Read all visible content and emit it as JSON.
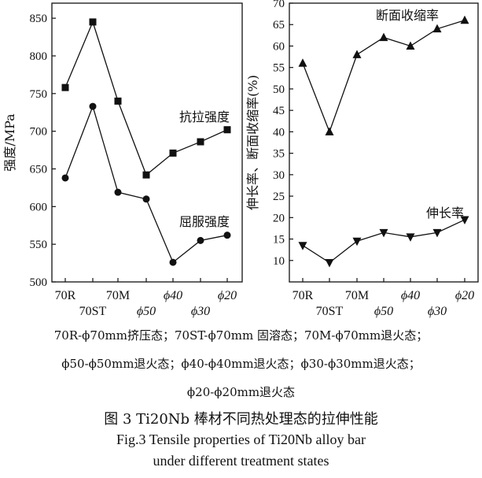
{
  "chart_data": [
    {
      "type": "line",
      "categories": [
        "70R",
        "70ST",
        "70M",
        "ϕ50",
        "ϕ40",
        "ϕ30",
        "ϕ20"
      ],
      "ylabel": "强度/MPa",
      "ylim": [
        500,
        870
      ],
      "yticks": [
        500,
        550,
        600,
        650,
        700,
        750,
        800,
        850
      ],
      "grid": false,
      "series": [
        {
          "name": "抗拉强度",
          "marker": "square",
          "values": [
            758,
            845,
            740,
            642,
            671,
            686,
            702
          ]
        },
        {
          "name": "屈服强度",
          "marker": "circle",
          "values": [
            638,
            733,
            619,
            610,
            526,
            555,
            562
          ]
        }
      ]
    },
    {
      "type": "line",
      "categories": [
        "70R",
        "70ST",
        "70M",
        "ϕ50",
        "ϕ40",
        "ϕ30",
        "ϕ20"
      ],
      "ylabel": "伸长率、断面收缩率(%)",
      "ylim": [
        5,
        70
      ],
      "yticks": [
        10,
        15,
        20,
        25,
        30,
        35,
        40,
        45,
        50,
        55,
        60,
        65,
        70
      ],
      "grid": false,
      "series": [
        {
          "name": "断面收缩率",
          "marker": "triangle-up",
          "values": [
            56,
            40,
            58,
            62,
            60,
            64,
            66
          ]
        },
        {
          "name": "伸长率",
          "marker": "triangle-down",
          "values": [
            13.5,
            9.5,
            14.5,
            16.5,
            15.5,
            16.5,
            19.5
          ]
        }
      ]
    }
  ],
  "notes": [
    "70R-ϕ70mm挤压态；70ST-ϕ70mm 固溶态；70M-ϕ70mm退火态；",
    "ϕ50-ϕ50mm退火态；ϕ40-ϕ40mm退火态；ϕ30-ϕ30mm退火态；",
    "ϕ20-ϕ20mm退火态"
  ],
  "caption": {
    "cn": "图 3  Ti20Nb 棒材不同热处理态的拉伸性能",
    "en_line1": "Fig.3  Tensile properties of Ti20Nb alloy bar",
    "en_line2": "under different treatment states"
  }
}
